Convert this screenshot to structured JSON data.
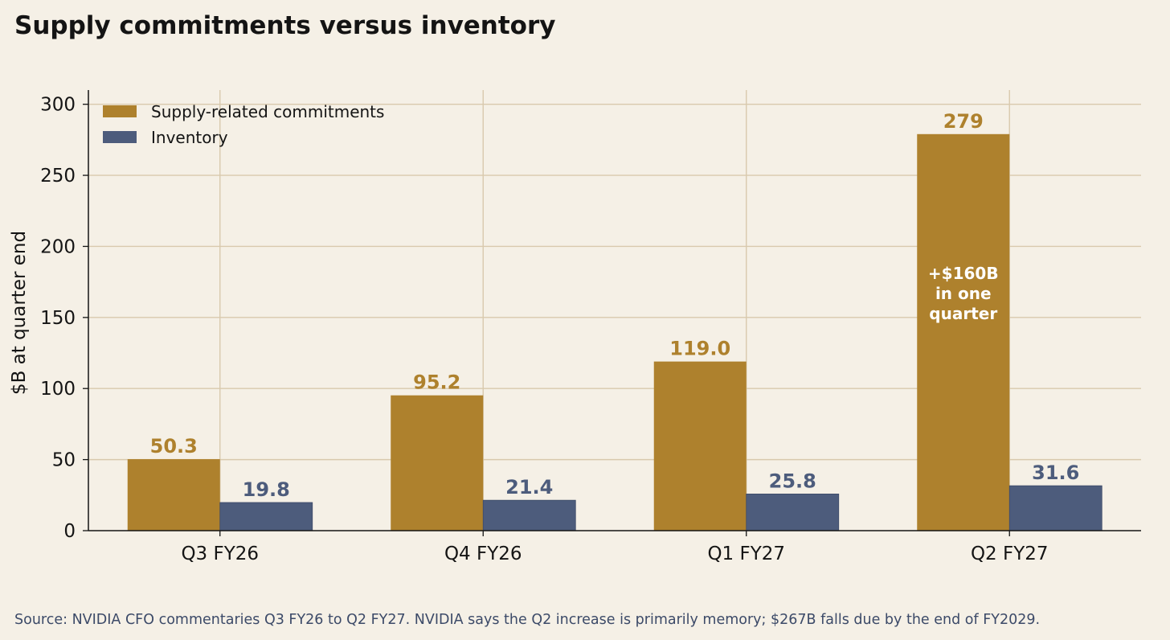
{
  "title": "Supply commitments versus inventory",
  "source": "Source: NVIDIA CFO commentaries Q3 FY26 to Q2 FY27. NVIDIA says the Q2 increase is primarily memory; $267B falls due by the end of FY2029.",
  "colors": {
    "background": "#f5f0e6",
    "grid": "#d9c9ad",
    "commitments": "#ae812d",
    "inventory": "#4d5c7c",
    "axis": "#141414",
    "annotation_text": "#ffffff"
  },
  "chart_data": {
    "type": "bar",
    "title": "Supply commitments versus inventory",
    "xlabel": "",
    "ylabel": "$B at quarter end",
    "categories": [
      "Q3 FY26",
      "Q4 FY26",
      "Q1 FY27",
      "Q2 FY27"
    ],
    "series": [
      {
        "name": "Supply-related commitments",
        "values": [
          50.3,
          95.2,
          119.0,
          279
        ],
        "labels": [
          "50.3",
          "95.2",
          "119.0",
          "279"
        ]
      },
      {
        "name": "Inventory",
        "values": [
          19.8,
          21.4,
          25.8,
          31.6
        ],
        "labels": [
          "19.8",
          "21.4",
          "25.8",
          "31.6"
        ]
      }
    ],
    "ylim": [
      0,
      310
    ],
    "yticks": [
      0,
      50,
      100,
      150,
      200,
      250,
      300
    ],
    "grid": true,
    "legend_position": "top-left",
    "annotation": {
      "lines": [
        "+$160B",
        "in one",
        "quarter"
      ],
      "category": "Q2 FY27",
      "series": "Supply-related commitments",
      "y": 167
    }
  }
}
